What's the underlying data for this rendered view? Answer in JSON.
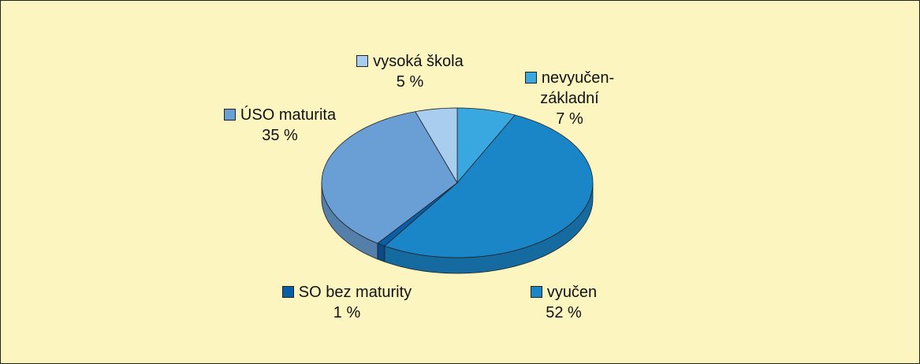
{
  "chart_data": {
    "type": "pie",
    "categories": [
      "nevyučen-základní",
      "vyučen",
      "SO bez maturity",
      "ÚSO maturita",
      "vysoká škola"
    ],
    "values": [
      7,
      52,
      1,
      35,
      5
    ],
    "value_labels": [
      "7 %",
      "52 %",
      "1 %",
      "35 %",
      "5 %"
    ],
    "colors": [
      "#3aa8e0",
      "#1a86c8",
      "#0a5ea8",
      "#6a9fd6",
      "#a8cdee"
    ]
  }
}
